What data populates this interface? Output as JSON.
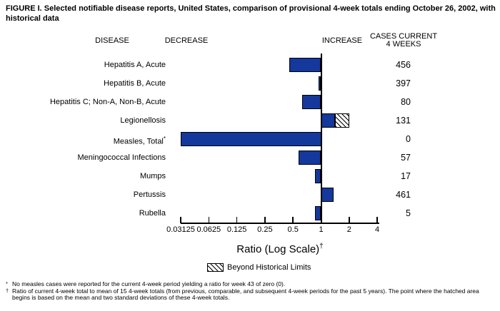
{
  "title": "FIGURE I. Selected notifiable disease reports, United States, comparison of provisional 4-week totals ending October 26, 2002, with historical data",
  "headers": {
    "disease": "DISEASE",
    "decrease": "DECREASE",
    "increase": "INCREASE",
    "cases_line1": "CASES CURRENT",
    "cases_line2": "4 WEEKS"
  },
  "axis_title": {
    "text": "Ratio (Log Scale)",
    "sup": "†"
  },
  "legend": {
    "label": "Beyond Historical Limits"
  },
  "footnotes": [
    {
      "marker": "*",
      "text": "No measles cases were reported for the current 4-week period yielding a ratio for week 43 of zero (0)."
    },
    {
      "marker": "†",
      "text": "Ratio of current 4-week total to mean of 15 4-week totals (from previous, comparable, and subsequent 4-week periods for the past 5 years). The point where the hatched area begins is based on the mean and two standard deviations of these 4-week totals."
    }
  ],
  "colors": {
    "bar": "#14389c",
    "border": "#000000",
    "background": "#ffffff",
    "text": "#000000"
  },
  "chart_data": {
    "type": "bar",
    "orientation": "horizontal",
    "xscale": "log2",
    "xlim": [
      0.03125,
      4
    ],
    "baseline": 1,
    "xlabel": "Ratio (Log Scale)",
    "tick_values": [
      0.03125,
      0.0625,
      0.125,
      0.25,
      0.5,
      1,
      2,
      4
    ],
    "tick_labels": [
      "0.03125",
      "0.0625",
      "0.125",
      "0.25",
      "0.5",
      "1",
      "2",
      "4"
    ],
    "legend_entries": [
      "Beyond Historical Limits"
    ],
    "categories": [
      "Hepatitis A, Acute",
      "Hepatitis B, Acute",
      "Hepatitis C; Non-A, Non-B, Acute",
      "Legionellosis",
      "Measles, Total",
      "Meningococcal Infections",
      "Mumps",
      "Pertussis",
      "Rubella"
    ],
    "series": [
      {
        "name": "Ratio of current 4-week total to historical mean",
        "values": [
          0.46,
          0.94,
          0.63,
          2.0,
          0,
          0.57,
          0.86,
          1.36,
          0.86
        ]
      }
    ],
    "cases_current_4_weeks": [
      456,
      397,
      80,
      131,
      0,
      57,
      17,
      461,
      5
    ],
    "rows": [
      {
        "label": "Hepatitis A, Acute",
        "sup": "",
        "ratio": 0.46,
        "cases": "456",
        "beyond_limits": false
      },
      {
        "label": "Hepatitis B, Acute",
        "sup": "",
        "ratio": 0.94,
        "cases": "397",
        "beyond_limits": false
      },
      {
        "label": "Hepatitis C; Non-A, Non-B, Acute",
        "sup": "",
        "ratio": 0.63,
        "cases": "80",
        "beyond_limits": false
      },
      {
        "label": "Legionellosis",
        "sup": "",
        "ratio": 2.0,
        "hatch_from": 1.4,
        "cases": "131",
        "beyond_limits": true
      },
      {
        "label": "Measles, Total",
        "sup": "*",
        "ratio": 0,
        "cases": "0",
        "beyond_limits": false
      },
      {
        "label": "Meningococcal Infections",
        "sup": "",
        "ratio": 0.57,
        "cases": "57",
        "beyond_limits": false
      },
      {
        "label": "Mumps",
        "sup": "",
        "ratio": 0.86,
        "cases": "17",
        "beyond_limits": false
      },
      {
        "label": "Pertussis",
        "sup": "",
        "ratio": 1.36,
        "cases": "461",
        "beyond_limits": false
      },
      {
        "label": "Rubella",
        "sup": "",
        "ratio": 0.86,
        "cases": "5",
        "beyond_limits": false
      }
    ]
  }
}
